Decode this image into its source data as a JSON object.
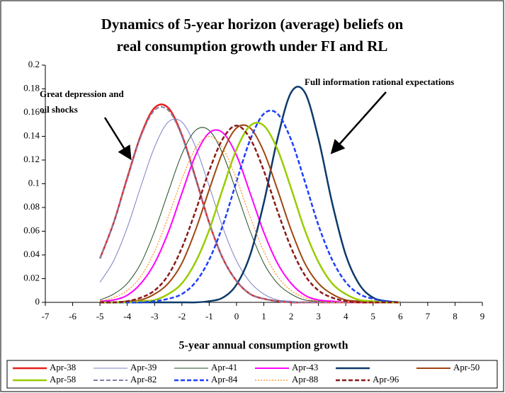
{
  "chart_data": {
    "type": "line",
    "title": [
      "Dynamics of 5-year horizon (average) beliefs on",
      "real consumption growth under FI and RL"
    ],
    "x_label": "5-year  annual consumption growth",
    "annotations": [
      {
        "text": [
          "Great depression and",
          "oil shocks"
        ]
      },
      {
        "text": [
          "Full information rational expectations"
        ]
      }
    ],
    "xlim": [
      -7,
      9
    ],
    "xticks": [
      -7,
      -6,
      -5,
      -4,
      -3,
      -2,
      -1,
      0,
      1,
      2,
      3,
      4,
      5,
      6,
      7,
      8,
      9
    ],
    "ylim": [
      0,
      0.2
    ],
    "yticks": [
      0,
      0.02,
      0.04,
      0.06,
      0.08,
      0.1,
      0.12,
      0.14,
      0.16,
      0.18,
      0.2
    ],
    "grid": false,
    "x": [
      -5,
      -4.5,
      -4,
      -3.5,
      -3,
      -2.5,
      -2,
      -1.5,
      -1,
      -0.5,
      0,
      0.5,
      1,
      1.5,
      2,
      2.5,
      3,
      3.5,
      4,
      4.5,
      5,
      5.5,
      6
    ],
    "series": [
      {
        "name": "Apr-38",
        "color": "#e8201e",
        "dash": "solid",
        "width": 2.5,
        "values": [
          0.037,
          0.067,
          0.105,
          0.141,
          0.164,
          0.164,
          0.141,
          0.105,
          0.067,
          0.037,
          0.018,
          0.007,
          0.003,
          0.001,
          0,
          0,
          0,
          0,
          0,
          0,
          0,
          0,
          0
        ]
      },
      {
        "name": "Apr-39",
        "color": "#7a80c4",
        "dash": "solid",
        "width": 1,
        "values": [
          0.017,
          0.035,
          0.063,
          0.098,
          0.131,
          0.152,
          0.152,
          0.131,
          0.098,
          0.063,
          0.035,
          0.017,
          0.007,
          0.002,
          0.001,
          0,
          0,
          0,
          0,
          0,
          0,
          0,
          0
        ]
      },
      {
        "name": "Apr-41",
        "color": "#1f4a1f",
        "dash": "solid",
        "width": 1,
        "values": [
          0.002,
          0.007,
          0.016,
          0.033,
          0.06,
          0.093,
          0.125,
          0.145,
          0.145,
          0.125,
          0.093,
          0.06,
          0.033,
          0.016,
          0.007,
          0.002,
          0.001,
          0,
          0,
          0,
          0,
          0,
          0
        ]
      },
      {
        "name": "Apr-43",
        "color": "#ff00ff",
        "dash": "solid",
        "width": 2,
        "values": [
          0.001,
          0.002,
          0.006,
          0.016,
          0.033,
          0.059,
          0.092,
          0.124,
          0.143,
          0.143,
          0.124,
          0.092,
          0.059,
          0.033,
          0.016,
          0.006,
          0.002,
          0.001,
          0,
          0,
          0,
          0,
          0
        ]
      },
      {
        "color": "#0d3a6a",
        "dash": "solid",
        "width": 2.5,
        "values": [
          0,
          0,
          0,
          0,
          0,
          0,
          0,
          0,
          0.001,
          0.004,
          0.015,
          0.04,
          0.084,
          0.138,
          0.177,
          0.177,
          0.138,
          0.084,
          0.04,
          0.015,
          0.004,
          0.001,
          0
        ]
      },
      {
        "name": "Apr-50",
        "color": "#a0440f",
        "dash": "solid",
        "width": 2,
        "values": [
          0,
          0,
          0.001,
          0.002,
          0.007,
          0.016,
          0.033,
          0.061,
          0.095,
          0.127,
          0.147,
          0.147,
          0.127,
          0.095,
          0.061,
          0.033,
          0.016,
          0.007,
          0.002,
          0.001,
          0,
          0,
          0
        ]
      },
      {
        "name": "Apr-58",
        "color": "#99cc00",
        "dash": "solid",
        "width": 2.5,
        "values": [
          0,
          0,
          0,
          0.001,
          0.002,
          0.007,
          0.016,
          0.034,
          0.061,
          0.096,
          0.129,
          0.149,
          0.149,
          0.129,
          0.096,
          0.061,
          0.034,
          0.016,
          0.007,
          0.002,
          0.001,
          0,
          0
        ]
      },
      {
        "name": "Apr-82",
        "color": "#7f7fa8",
        "dash": "dash",
        "width": 2,
        "values": [
          0.037,
          0.067,
          0.104,
          0.14,
          0.162,
          0.162,
          0.14,
          0.104,
          0.067,
          0.037,
          0.018,
          0.007,
          0.003,
          0.001,
          0,
          0,
          0,
          0,
          0,
          0,
          0,
          0,
          0
        ]
      },
      {
        "name": "Apr-84",
        "color": "#1f3fff",
        "dash": "dash",
        "width": 2.5,
        "values": [
          0,
          0,
          0,
          0,
          0.001,
          0.003,
          0.007,
          0.017,
          0.036,
          0.065,
          0.102,
          0.137,
          0.159,
          0.159,
          0.137,
          0.102,
          0.065,
          0.036,
          0.017,
          0.007,
          0.003,
          0.001,
          0
        ]
      },
      {
        "name": "Apr-88",
        "color": "#ff8c1a",
        "dash": "dot",
        "width": 1.2,
        "values": [
          0.001,
          0.004,
          0.01,
          0.022,
          0.043,
          0.072,
          0.104,
          0.13,
          0.14,
          0.13,
          0.104,
          0.072,
          0.043,
          0.022,
          0.01,
          0.004,
          0.001,
          0,
          0,
          0,
          0,
          0,
          0
        ]
      },
      {
        "name": "Apr-96",
        "color": "#8b1a1a",
        "dash": "dash",
        "width": 2.5,
        "values": [
          0,
          0,
          0.001,
          0.004,
          0.01,
          0.023,
          0.046,
          0.077,
          0.111,
          0.138,
          0.149,
          0.138,
          0.111,
          0.077,
          0.046,
          0.023,
          0.01,
          0.004,
          0.001,
          0,
          0,
          0,
          0
        ]
      }
    ]
  }
}
